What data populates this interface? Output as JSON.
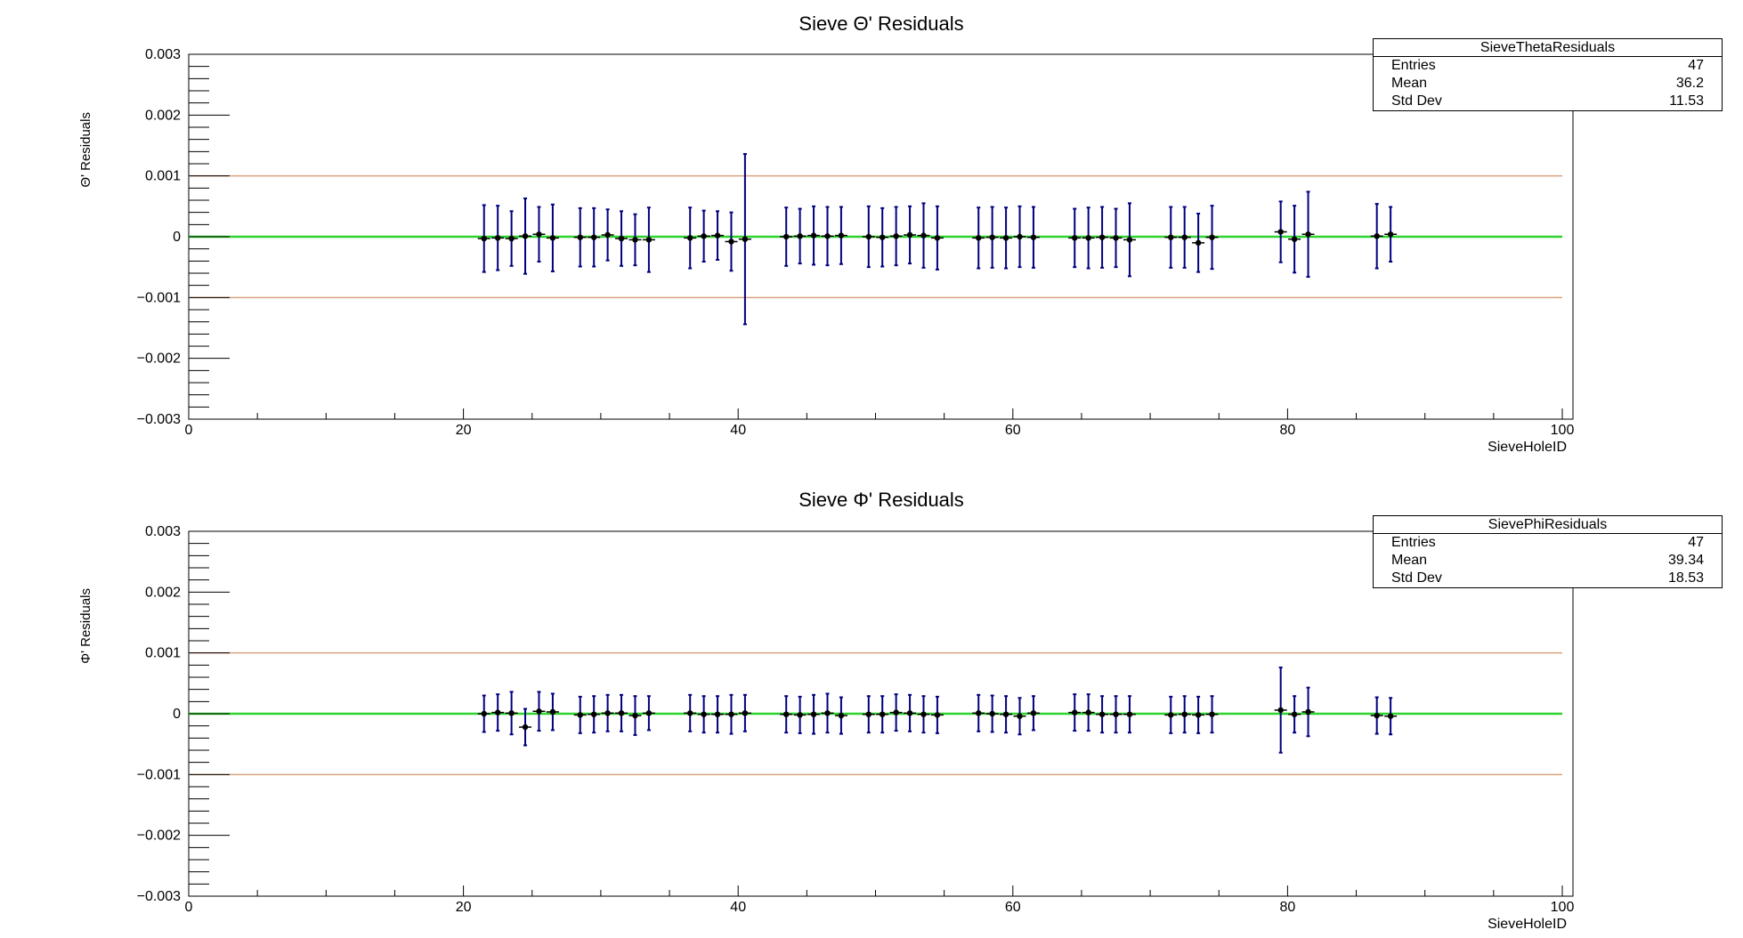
{
  "chart_data": [
    {
      "type": "scatter",
      "title": "Sieve Θ' Residuals",
      "xlabel": "SieveHoleID",
      "ylabel": "Θ' Residuals",
      "xlim": [
        0,
        100
      ],
      "ylim": [
        -0.003,
        0.003
      ],
      "x_ticks": [
        0,
        20,
        40,
        60,
        80,
        100
      ],
      "x_tick_labels": [
        "0",
        "20",
        "40",
        "60",
        "80",
        "100"
      ],
      "y_ticks": [
        -0.003,
        -0.002,
        -0.001,
        0,
        0.001,
        0.002,
        0.003
      ],
      "y_tick_labels": [
        "−0.003",
        "−0.002",
        "−0.001",
        "0",
        "0.001",
        "0.002",
        "0.003"
      ],
      "grid": false,
      "reference_lines": [
        {
          "y": 0.001,
          "color": "#d9a37e"
        },
        {
          "y": 0,
          "color": "#2fd32f"
        },
        {
          "y": -0.001,
          "color": "#d9a37e"
        }
      ],
      "marker_color": "#000000",
      "errorbar_color": "#00007f",
      "points": [
        {
          "x": 21.5,
          "y": -3e-05,
          "err": 0.00055
        },
        {
          "x": 22.5,
          "y": -2e-05,
          "err": 0.00053
        },
        {
          "x": 23.5,
          "y": -3e-05,
          "err": 0.00045
        },
        {
          "x": 24.5,
          "y": 1e-05,
          "err": 0.00062
        },
        {
          "x": 25.5,
          "y": 4e-05,
          "err": 0.00045
        },
        {
          "x": 26.5,
          "y": -2e-05,
          "err": 0.00055
        },
        {
          "x": 28.5,
          "y": -1e-05,
          "err": 0.00048
        },
        {
          "x": 29.5,
          "y": -1e-05,
          "err": 0.00048
        },
        {
          "x": 30.5,
          "y": 3e-05,
          "err": 0.00042
        },
        {
          "x": 31.5,
          "y": -3e-05,
          "err": 0.00045
        },
        {
          "x": 32.5,
          "y": -5e-05,
          "err": 0.00042
        },
        {
          "x": 33.5,
          "y": -5e-05,
          "err": 0.00053
        },
        {
          "x": 36.5,
          "y": -2e-05,
          "err": 0.0005
        },
        {
          "x": 37.5,
          "y": 1e-05,
          "err": 0.00042
        },
        {
          "x": 38.5,
          "y": 2e-05,
          "err": 0.0004
        },
        {
          "x": 39.5,
          "y": -8e-05,
          "err": 0.00048
        },
        {
          "x": 40.5,
          "y": -4e-05,
          "err": 0.0014
        },
        {
          "x": 43.5,
          "y": 0,
          "err": 0.00048
        },
        {
          "x": 44.5,
          "y": 1e-05,
          "err": 0.00045
        },
        {
          "x": 45.5,
          "y": 2e-05,
          "err": 0.00048
        },
        {
          "x": 46.5,
          "y": 1e-05,
          "err": 0.00048
        },
        {
          "x": 47.5,
          "y": 2e-05,
          "err": 0.00047
        },
        {
          "x": 49.5,
          "y": 0,
          "err": 0.0005
        },
        {
          "x": 50.5,
          "y": -1e-05,
          "err": 0.00048
        },
        {
          "x": 51.5,
          "y": 1e-05,
          "err": 0.00048
        },
        {
          "x": 52.5,
          "y": 3e-05,
          "err": 0.00047
        },
        {
          "x": 53.5,
          "y": 2e-05,
          "err": 0.00053
        },
        {
          "x": 54.5,
          "y": -2e-05,
          "err": 0.00052
        },
        {
          "x": 57.5,
          "y": -2e-05,
          "err": 0.0005
        },
        {
          "x": 58.5,
          "y": -1e-05,
          "err": 0.0005
        },
        {
          "x": 59.5,
          "y": -2e-05,
          "err": 0.0005
        },
        {
          "x": 60.5,
          "y": 0,
          "err": 0.0005
        },
        {
          "x": 61.5,
          "y": -1e-05,
          "err": 0.0005
        },
        {
          "x": 64.5,
          "y": -2e-05,
          "err": 0.00048
        },
        {
          "x": 65.5,
          "y": -2e-05,
          "err": 0.0005
        },
        {
          "x": 66.5,
          "y": -1e-05,
          "err": 0.0005
        },
        {
          "x": 67.5,
          "y": -2e-05,
          "err": 0.00048
        },
        {
          "x": 68.5,
          "y": -5e-05,
          "err": 0.0006
        },
        {
          "x": 71.5,
          "y": -1e-05,
          "err": 0.0005
        },
        {
          "x": 72.5,
          "y": -1e-05,
          "err": 0.0005
        },
        {
          "x": 73.5,
          "y": -0.0001,
          "err": 0.00048
        },
        {
          "x": 74.5,
          "y": -1e-05,
          "err": 0.00052
        },
        {
          "x": 79.5,
          "y": 8e-05,
          "err": 0.0005
        },
        {
          "x": 80.5,
          "y": -4e-05,
          "err": 0.00055
        },
        {
          "x": 81.5,
          "y": 4e-05,
          "err": 0.0007
        },
        {
          "x": 86.5,
          "y": 1e-05,
          "err": 0.00053
        },
        {
          "x": 87.5,
          "y": 4e-05,
          "err": 0.00045
        }
      ],
      "stats": {
        "name": "SieveThetaResiduals",
        "rows": [
          {
            "label": "Entries",
            "value": "47"
          },
          {
            "label": "Mean",
            "value": "36.2"
          },
          {
            "label": "Std Dev",
            "value": "11.53"
          }
        ]
      }
    },
    {
      "type": "scatter",
      "title": "Sieve Φ' Residuals",
      "xlabel": "SieveHoleID",
      "ylabel": "Φ' Residuals",
      "xlim": [
        0,
        100
      ],
      "ylim": [
        -0.003,
        0.003
      ],
      "x_ticks": [
        0,
        20,
        40,
        60,
        80,
        100
      ],
      "x_tick_labels": [
        "0",
        "20",
        "40",
        "60",
        "80",
        "100"
      ],
      "y_ticks": [
        -0.003,
        -0.002,
        -0.001,
        0,
        0.001,
        0.002,
        0.003
      ],
      "y_tick_labels": [
        "−0.003",
        "−0.002",
        "−0.001",
        "0",
        "0.001",
        "0.002",
        "0.003"
      ],
      "grid": false,
      "reference_lines": [
        {
          "y": 0.001,
          "color": "#d9a37e"
        },
        {
          "y": 0,
          "color": "#2fd32f"
        },
        {
          "y": -0.001,
          "color": "#d9a37e"
        }
      ],
      "marker_color": "#000000",
      "errorbar_color": "#00007f",
      "points": [
        {
          "x": 21.5,
          "y": 0,
          "err": 0.0003
        },
        {
          "x": 22.5,
          "y": 2e-05,
          "err": 0.0003
        },
        {
          "x": 23.5,
          "y": 1e-05,
          "err": 0.00035
        },
        {
          "x": 24.5,
          "y": -0.00022,
          "err": 0.0003
        },
        {
          "x": 25.5,
          "y": 4e-05,
          "err": 0.00032
        },
        {
          "x": 26.5,
          "y": 3e-05,
          "err": 0.0003
        },
        {
          "x": 28.5,
          "y": -2e-05,
          "err": 0.0003
        },
        {
          "x": 29.5,
          "y": -1e-05,
          "err": 0.0003
        },
        {
          "x": 30.5,
          "y": 1e-05,
          "err": 0.0003
        },
        {
          "x": 31.5,
          "y": 1e-05,
          "err": 0.0003
        },
        {
          "x": 32.5,
          "y": -3e-05,
          "err": 0.00032
        },
        {
          "x": 33.5,
          "y": 1e-05,
          "err": 0.00028
        },
        {
          "x": 36.5,
          "y": 1e-05,
          "err": 0.0003
        },
        {
          "x": 37.5,
          "y": -1e-05,
          "err": 0.0003
        },
        {
          "x": 38.5,
          "y": -1e-05,
          "err": 0.0003
        },
        {
          "x": 39.5,
          "y": -1e-05,
          "err": 0.00032
        },
        {
          "x": 40.5,
          "y": 1e-05,
          "err": 0.0003
        },
        {
          "x": 43.5,
          "y": -1e-05,
          "err": 0.0003
        },
        {
          "x": 44.5,
          "y": -2e-05,
          "err": 0.0003
        },
        {
          "x": 45.5,
          "y": -1e-05,
          "err": 0.00032
        },
        {
          "x": 46.5,
          "y": 1e-05,
          "err": 0.00032
        },
        {
          "x": 47.5,
          "y": -3e-05,
          "err": 0.0003
        },
        {
          "x": 49.5,
          "y": -1e-05,
          "err": 0.0003
        },
        {
          "x": 50.5,
          "y": -1e-05,
          "err": 0.0003
        },
        {
          "x": 51.5,
          "y": 2e-05,
          "err": 0.0003
        },
        {
          "x": 52.5,
          "y": 1e-05,
          "err": 0.0003
        },
        {
          "x": 53.5,
          "y": -1e-05,
          "err": 0.0003
        },
        {
          "x": 54.5,
          "y": -2e-05,
          "err": 0.0003
        },
        {
          "x": 57.5,
          "y": 1e-05,
          "err": 0.0003
        },
        {
          "x": 58.5,
          "y": 0,
          "err": 0.0003
        },
        {
          "x": 59.5,
          "y": -1e-05,
          "err": 0.0003
        },
        {
          "x": 60.5,
          "y": -4e-05,
          "err": 0.0003
        },
        {
          "x": 61.5,
          "y": 1e-05,
          "err": 0.00028
        },
        {
          "x": 64.5,
          "y": 2e-05,
          "err": 0.0003
        },
        {
          "x": 65.5,
          "y": 2e-05,
          "err": 0.0003
        },
        {
          "x": 66.5,
          "y": -1e-05,
          "err": 0.0003
        },
        {
          "x": 67.5,
          "y": -1e-05,
          "err": 0.0003
        },
        {
          "x": 68.5,
          "y": -1e-05,
          "err": 0.0003
        },
        {
          "x": 71.5,
          "y": -2e-05,
          "err": 0.0003
        },
        {
          "x": 72.5,
          "y": -1e-05,
          "err": 0.0003
        },
        {
          "x": 73.5,
          "y": -2e-05,
          "err": 0.0003
        },
        {
          "x": 74.5,
          "y": -1e-05,
          "err": 0.0003
        },
        {
          "x": 79.5,
          "y": 6e-05,
          "err": 0.0007
        },
        {
          "x": 80.5,
          "y": -1e-05,
          "err": 0.0003
        },
        {
          "x": 81.5,
          "y": 3e-05,
          "err": 0.0004
        },
        {
          "x": 86.5,
          "y": -3e-05,
          "err": 0.0003
        },
        {
          "x": 87.5,
          "y": -4e-05,
          "err": 0.0003
        }
      ],
      "stats": {
        "name": "SievePhiResiduals",
        "rows": [
          {
            "label": "Entries",
            "value": "47"
          },
          {
            "label": "Mean",
            "value": "39.34"
          },
          {
            "label": "Std Dev",
            "value": "18.53"
          }
        ]
      }
    }
  ]
}
